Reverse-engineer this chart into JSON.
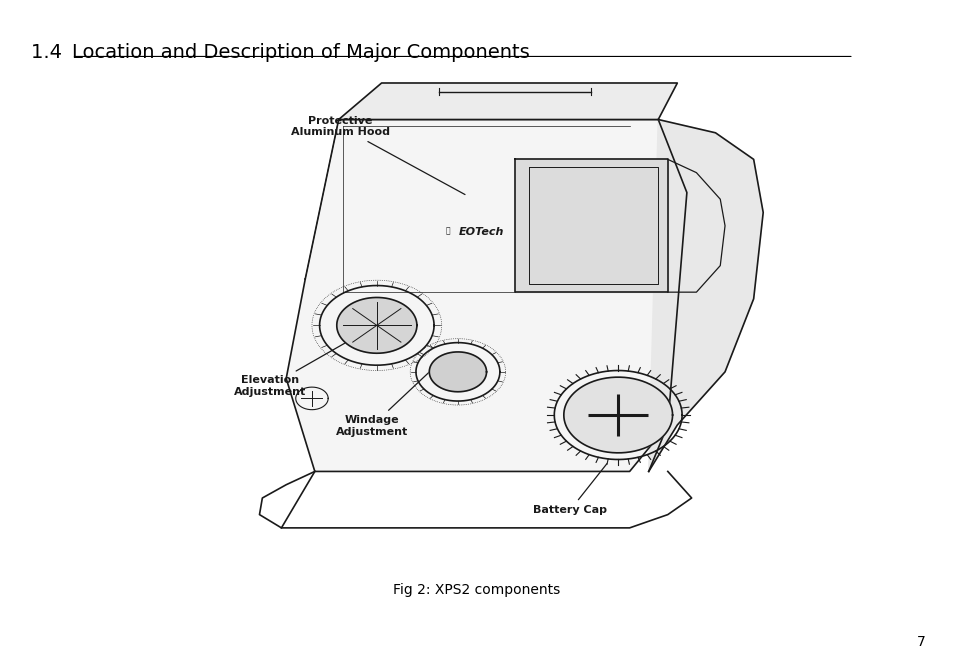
{
  "title_prefix": "1.4 ",
  "title_rest": "Location and Description of Major Components",
  "fig_caption": "Fig 2: XPS2 components",
  "page_number": "7",
  "bg_color": "#ffffff",
  "text_color": "#000000",
  "line_color": "#1a1a1a",
  "title_fontsize": 14,
  "caption_fontsize": 10,
  "page_fontsize": 10,
  "label_fontsize": 8,
  "labels": {
    "protective_hood": "Protective\nAluminum Hood",
    "elevation": "Elevation\nAdjustment",
    "windage": "Windage\nAdjustment",
    "battery": "Battery Cap"
  }
}
